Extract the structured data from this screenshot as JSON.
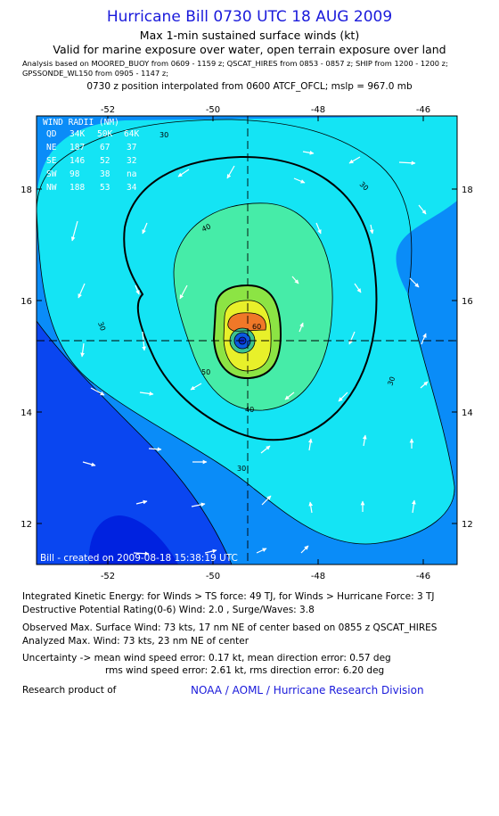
{
  "header": {
    "title": "Hurricane Bill 0730 UTC 18 AUG 2009",
    "subtitle1": "Max 1-min sustained surface winds (kt)",
    "subtitle2": "Valid for marine exposure over water, open terrain exposure over land",
    "analysis": "Analysis based on  MOORED_BUOY from 0609 - 1159 z;  QSCAT_HIRES from 0853 - 0857 z;  SHIP from 1200 - 1200 z;\nGPSSONDE_WL150 from 0905 - 1147 z;",
    "position": "0730 z position interpolated from 0600 ATCF_OFCL; mslp = 967.0 mb"
  },
  "map": {
    "x_ticks": [
      "-52",
      "-50",
      "-48",
      "-46"
    ],
    "y_ticks": [
      "18",
      "16",
      "14",
      "12"
    ],
    "created": "Bill - created on 2009-08-18 15:38:19 UTC",
    "contour_labels": [
      "30",
      "30",
      "30",
      "30",
      "30",
      "40",
      "40",
      "50",
      "60"
    ],
    "colors": {
      "c_lt30": "#0a8cf8",
      "c_30": "#14e4f4",
      "c_40": "#46eca8",
      "c_50": "#8ce444",
      "c_60": "#e8f02a",
      "c_64": "#f07828",
      "c_low": "#0a46f0",
      "c_lowest": "#0022e0"
    }
  },
  "wind_radii": {
    "title": "WIND RADII (NM)",
    "header": [
      "QD",
      "34K",
      "50K",
      "64K"
    ],
    "rows": [
      [
        "NE",
        "187",
        "67",
        "37"
      ],
      [
        "SE",
        "146",
        "52",
        "32"
      ],
      [
        "SW",
        "98",
        "38",
        "na"
      ],
      [
        "NW",
        "188",
        "53",
        "34"
      ]
    ]
  },
  "stats": {
    "ike": "Integrated Kinetic Energy:  for Winds > TS force: 49 TJ,  for Winds > Hurricane Force: 3 TJ",
    "dpr": "Destructive Potential Rating(0-6)   Wind: 2.0 , Surge/Waves: 3.8",
    "observed": "Observed Max. Surface Wind: 73 kts, 17 nm NE of center based on 0855 z QSCAT_HIRES",
    "analyzed": "Analyzed Max. Wind: 73 kts, 23 nm NE of center",
    "uncert1": "Uncertainty -> mean wind speed error: 0.17 kt,   mean direction error: 0.57 deg",
    "uncert2": "rms wind speed error: 2.61 kt,   rms direction error: 6.20 deg",
    "research": "Research product of",
    "org": "NOAA / AOML / Hurricane Research Division"
  }
}
